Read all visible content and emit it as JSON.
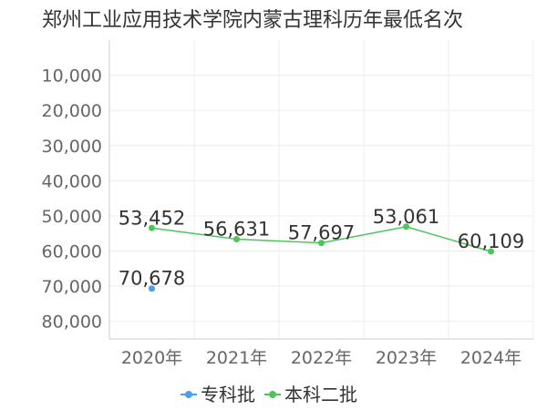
{
  "chart_data": {
    "type": "line",
    "title": "郑州工业应用技术学院内蒙古理科历年最低名次",
    "categories": [
      "2020年",
      "2021年",
      "2022年",
      "2023年",
      "2024年"
    ],
    "y_axis": {
      "reversed": true,
      "ylim": [
        0,
        85000
      ],
      "ticks": [
        10000,
        20000,
        30000,
        40000,
        50000,
        60000,
        70000,
        80000
      ],
      "tick_labels": [
        "10,000",
        "20,000",
        "30,000",
        "40,000",
        "50,000",
        "60,000",
        "70,000",
        "80,000"
      ]
    },
    "grid": true,
    "legend_position": "bottom",
    "series": [
      {
        "name": "专科批",
        "color": "#4a9ff5",
        "values": [
          70678,
          null,
          null,
          null,
          null
        ],
        "labels": [
          "70,678",
          null,
          null,
          null,
          null
        ]
      },
      {
        "name": "本科二批",
        "color": "#4cc65a",
        "values": [
          53452,
          56631,
          57697,
          53061,
          60109
        ],
        "labels": [
          "53,452",
          "56,631",
          "57,697",
          "53,061",
          "60,109"
        ]
      }
    ]
  }
}
